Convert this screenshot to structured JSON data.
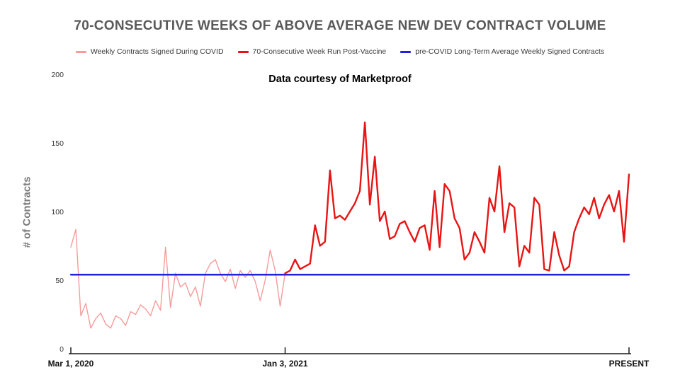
{
  "chart_data": {
    "type": "line",
    "title": "70-CONSECUTIVE WEEKS OF ABOVE AVERAGE NEW DEV CONTRACT VOLUME",
    "subtitle": "Data courtesy of Marketproof",
    "ylabel": "# of Contracts",
    "ylim": [
      0,
      200
    ],
    "yticks": [
      0,
      50,
      100,
      150,
      200
    ],
    "x_max": 112,
    "xticks": [
      {
        "label": "Mar 1, 2020",
        "index": 0
      },
      {
        "label": "Jan 3, 2021",
        "index": 43
      },
      {
        "label": "PRESENT",
        "index": 112
      }
    ],
    "grid": false,
    "legend_position": "top-center",
    "axis_color": "#1a1a1a",
    "series": [
      {
        "name": "Weekly Contracts Signed During COVID",
        "color": "#F59B9B",
        "width": 1.4,
        "z": 1,
        "start": 0,
        "values": [
          74,
          87,
          24,
          33,
          15,
          22,
          26,
          18,
          15,
          24,
          22,
          17,
          27,
          25,
          32,
          29,
          24,
          35,
          28,
          74,
          30,
          55,
          45,
          48,
          38,
          45,
          31,
          55,
          62,
          65,
          55,
          49,
          58,
          44,
          57,
          52,
          57,
          49,
          35,
          50,
          72,
          57,
          31,
          55
        ]
      },
      {
        "name": "70-Consecutive Week Run Post-Vaccine",
        "color": "#E81414",
        "width": 2.4,
        "z": 3,
        "start": 43,
        "values": [
          55,
          57,
          65,
          58,
          60,
          62,
          90,
          75,
          78,
          130,
          95,
          97,
          94,
          100,
          106,
          115,
          165,
          105,
          140,
          93,
          100,
          80,
          82,
          91,
          93,
          85,
          78,
          88,
          90,
          72,
          115,
          74,
          120,
          115,
          95,
          88,
          65,
          70,
          85,
          78,
          70,
          110,
          100,
          133,
          85,
          106,
          103,
          60,
          75,
          70,
          110,
          105,
          58,
          57,
          85,
          68,
          57,
          60,
          85,
          95,
          103,
          98,
          110,
          95,
          105,
          112,
          100,
          115,
          78,
          127
        ]
      },
      {
        "name": "pre-COVID Long-Term Average Weekly Signed Contracts",
        "color": "#2020E0",
        "width": 2.4,
        "z": 2,
        "constant": 54
      }
    ]
  }
}
